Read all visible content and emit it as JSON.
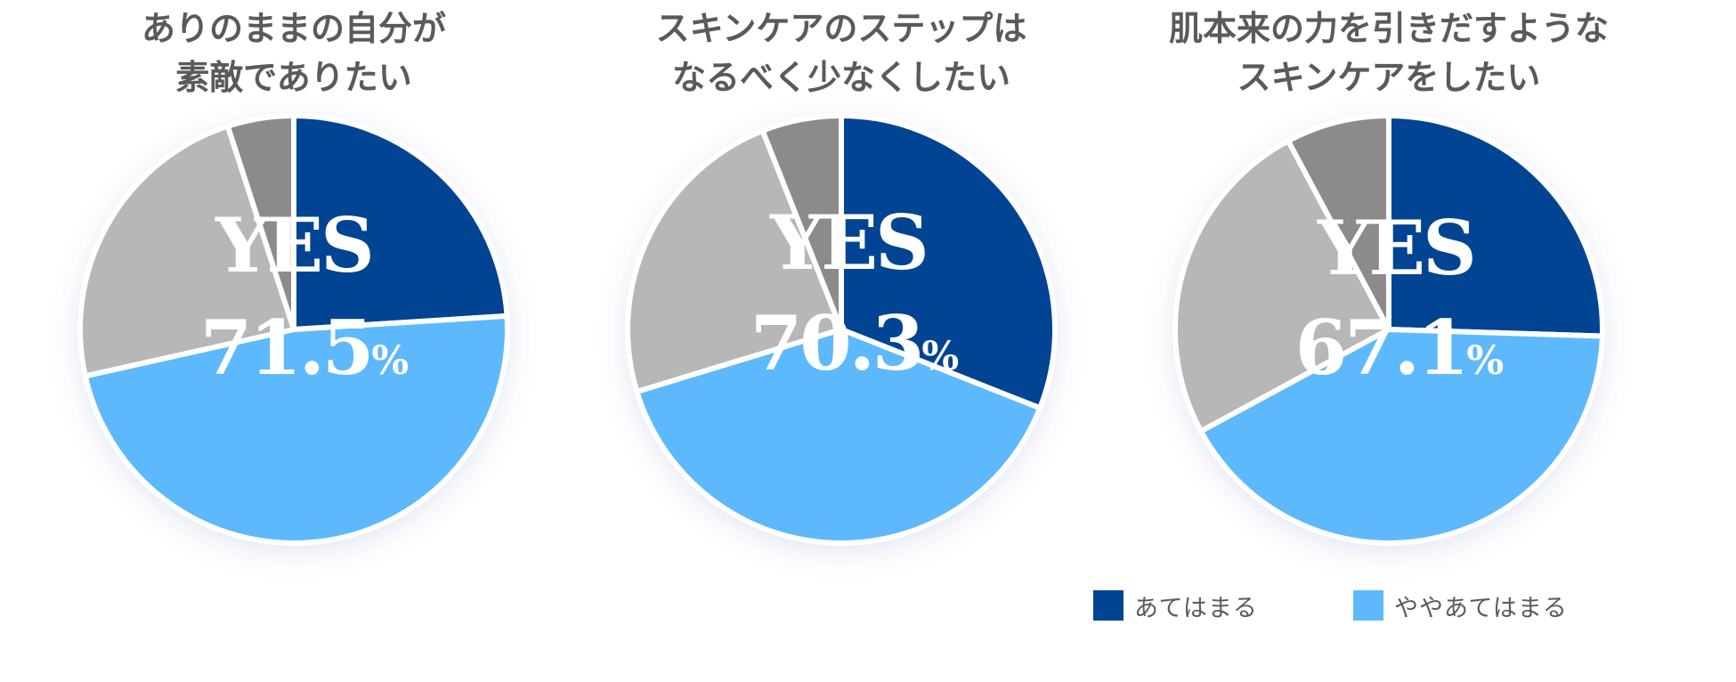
{
  "chart_data": [
    {
      "type": "pie",
      "title": [
        "ありのままの自分が",
        "素敵でありたい"
      ],
      "headline": "YES",
      "value_text": "71.5",
      "value_unit": "%",
      "slices": [
        {
          "name": "あてはまる",
          "value": 24.0,
          "color": "#004493"
        },
        {
          "name": "ややあてはまる",
          "value": 47.5,
          "color": "#5DB9FB"
        },
        {
          "name": "",
          "value": 23.5,
          "color": "#B7B7B7"
        },
        {
          "name": "",
          "value": 5.0,
          "color": "#8B8B8B"
        }
      ]
    },
    {
      "type": "pie",
      "title": [
        "スキンケアのステップは",
        "なるべく少なくしたい"
      ],
      "headline": "YES",
      "value_text": "70.3",
      "value_unit": "%",
      "slices": [
        {
          "name": "あてはまる",
          "value": 31.0,
          "color": "#004493"
        },
        {
          "name": "ややあてはまる",
          "value": 39.3,
          "color": "#5DB9FB"
        },
        {
          "name": "",
          "value": 23.7,
          "color": "#B7B7B7"
        },
        {
          "name": "",
          "value": 6.0,
          "color": "#8B8B8B"
        }
      ]
    },
    {
      "type": "pie",
      "title": [
        "肌本来の力を引きだすような",
        "スキンケアをしたい"
      ],
      "headline": "YES",
      "value_text": "67.1",
      "value_unit": "%",
      "slices": [
        {
          "name": "あてはまる",
          "value": 25.5,
          "color": "#004493"
        },
        {
          "name": "ややあてはまる",
          "value": 41.6,
          "color": "#5DB9FB"
        },
        {
          "name": "",
          "value": 25.1,
          "color": "#B7B7B7"
        },
        {
          "name": "",
          "value": 7.8,
          "color": "#8B8B8B"
        }
      ]
    }
  ],
  "legend": [
    {
      "label": "あてはまる",
      "color": "#004493"
    },
    {
      "label": "ややあてはまる",
      "color": "#5DB9FB"
    }
  ],
  "colors": {
    "title_text": "#5a5a5a",
    "label_text": "#ffffff"
  }
}
